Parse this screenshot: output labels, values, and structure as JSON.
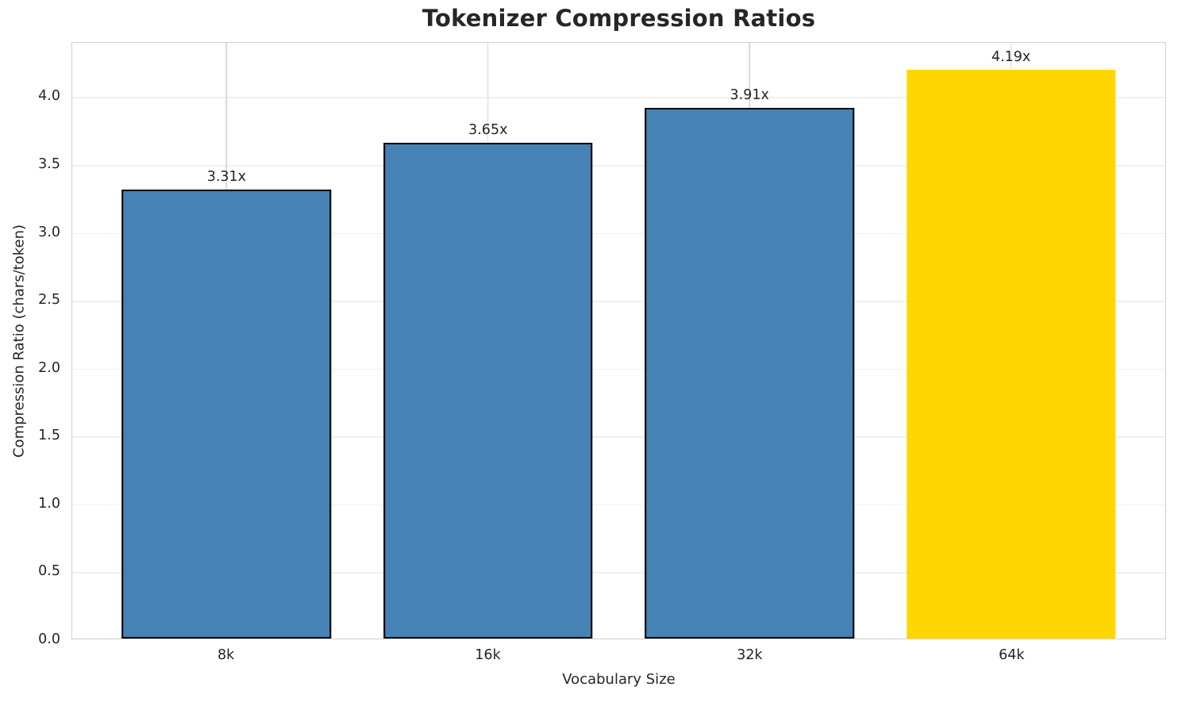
{
  "title": "Tokenizer Compression Ratios",
  "chart_data": {
    "type": "bar",
    "title": "Tokenizer Compression Ratios",
    "xlabel": "Vocabulary Size",
    "ylabel": "Compression Ratio (chars/token)",
    "categories": [
      "8k",
      "16k",
      "32k",
      "64k"
    ],
    "values": [
      3.31,
      3.65,
      3.91,
      4.19
    ],
    "bar_labels": [
      "3.31x",
      "3.65x",
      "3.91x",
      "4.19x"
    ],
    "ylim": [
      0,
      4.4
    ],
    "yticks": [
      0.0,
      0.5,
      1.0,
      1.5,
      2.0,
      2.5,
      3.0,
      3.5,
      4.0
    ],
    "ytick_labels": [
      "0.0",
      "0.5",
      "1.0",
      "1.5",
      "2.0",
      "2.5",
      "3.0",
      "3.5",
      "4.0"
    ],
    "grid": true,
    "legend": false,
    "bar_width_fraction": 0.8,
    "colors": {
      "base_bar": "#4682B4",
      "highlight_bar": "#FFD700",
      "bar_edge": "#000000",
      "highlight_bar_edge": "none",
      "text": "#262626",
      "hgrid": "#f0f0f0",
      "vgrid": "#d9d9d9",
      "plot_border": "#d0d0d0",
      "background": "#ffffff"
    },
    "bar_colors": [
      "#4682B4",
      "#4682B4",
      "#4682B4",
      "#FFD700"
    ],
    "bar_edge_colors": [
      "#000000",
      "#000000",
      "#000000",
      "none"
    ]
  }
}
